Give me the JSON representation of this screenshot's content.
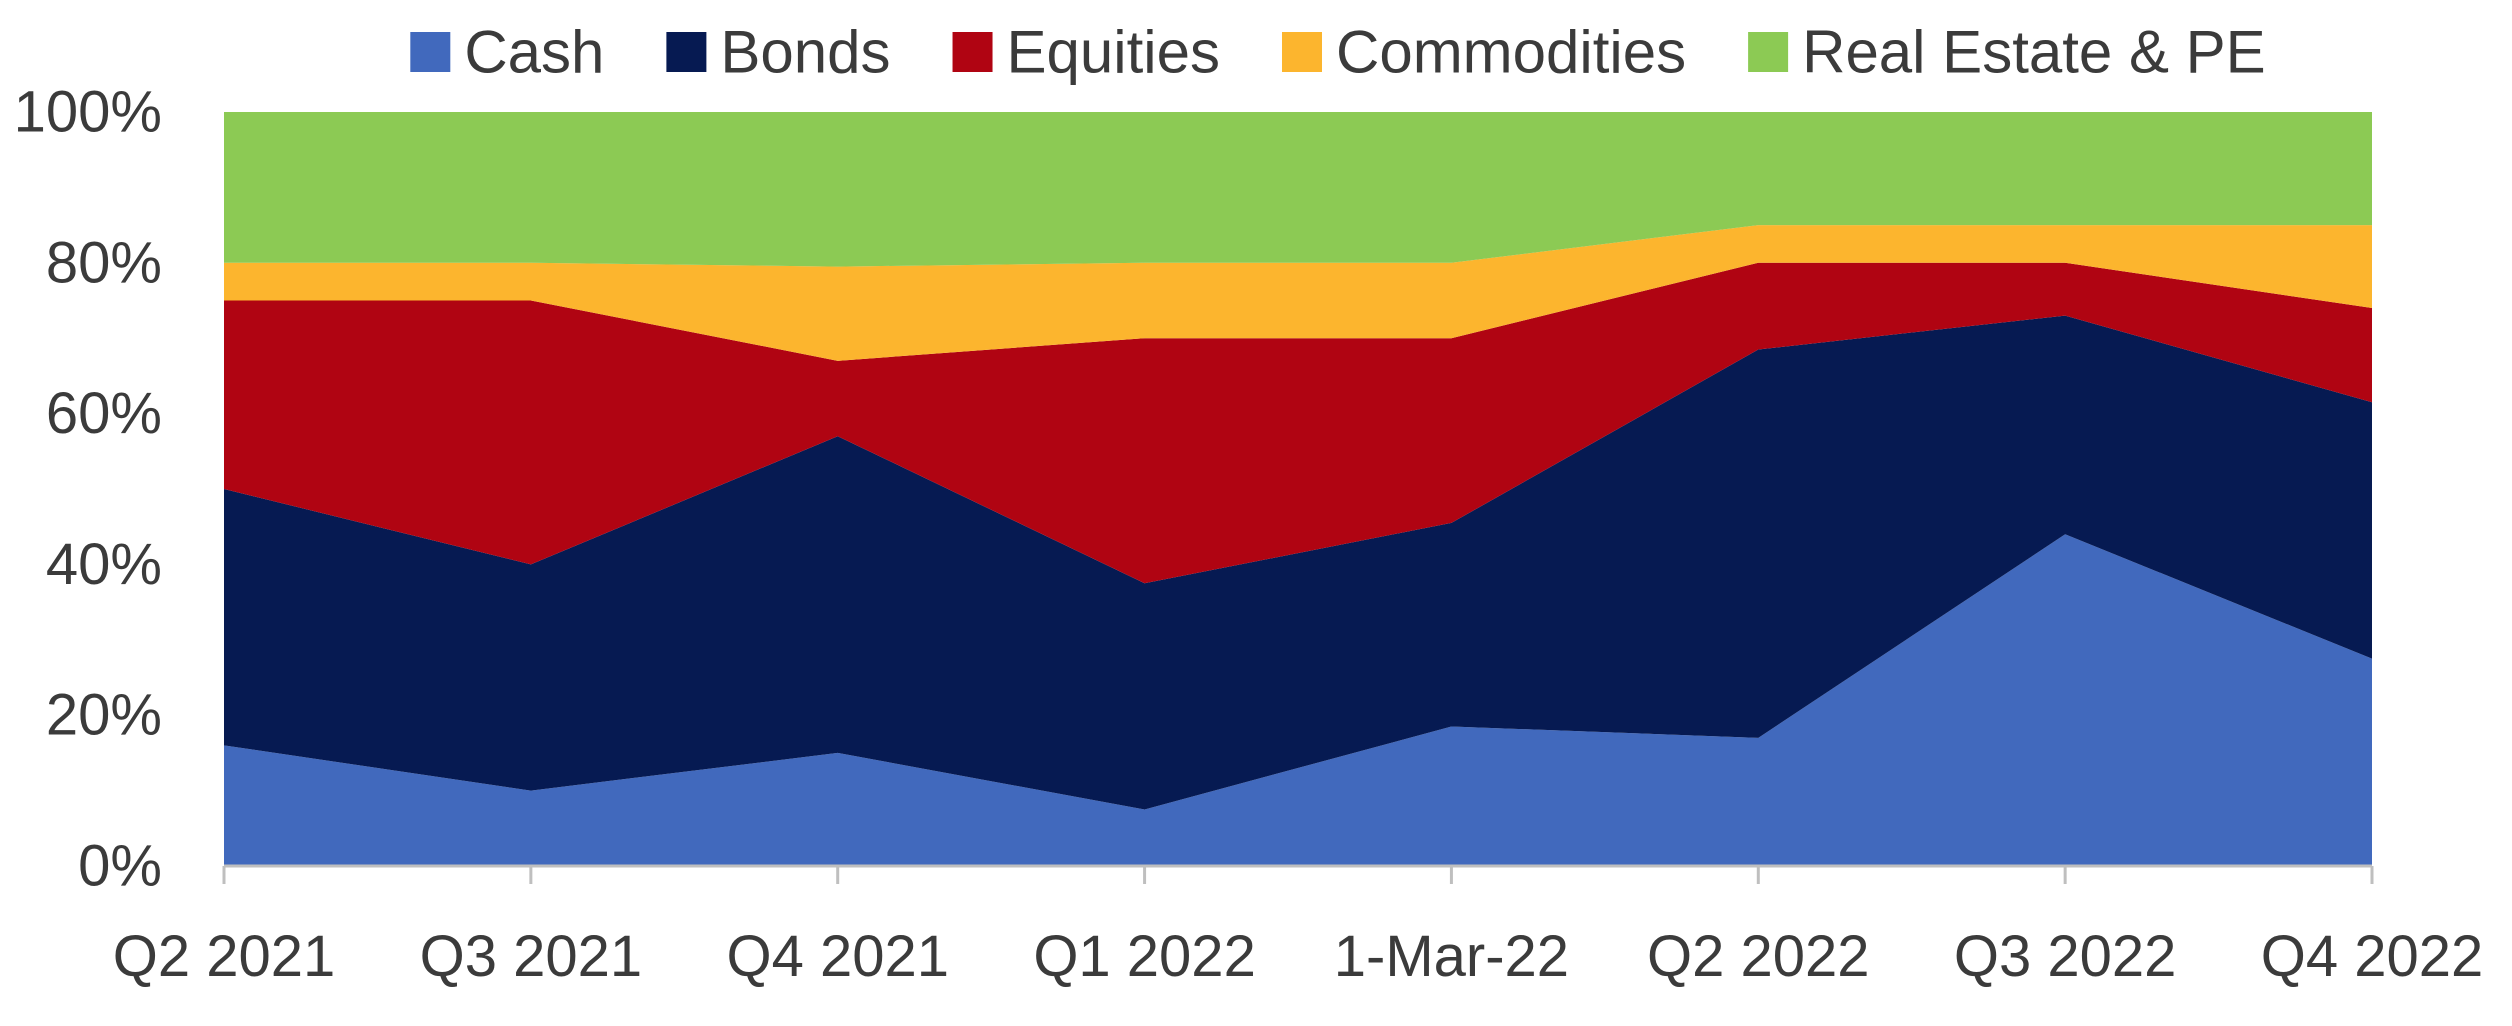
{
  "chart_data": {
    "type": "area",
    "stacked": true,
    "normalized": true,
    "categories": [
      "Q2 2021",
      "Q3 2021",
      "Q4 2021",
      "Q1 2022",
      "1-Mar-22",
      "Q2 2022",
      "Q3 2022",
      "Q4 2022"
    ],
    "series": [
      {
        "name": "Cash",
        "color": "#4169BD",
        "values": [
          16,
          10,
          15,
          7.5,
          18.5,
          17,
          44,
          27.5
        ]
      },
      {
        "name": "Bonds",
        "color": "#061A52",
        "values": [
          34,
          30,
          42,
          30,
          27,
          51.5,
          29,
          34
        ]
      },
      {
        "name": "Equities",
        "color": "#B00412",
        "values": [
          25,
          35,
          10,
          32.5,
          24.5,
          11.5,
          7,
          12.5
        ]
      },
      {
        "name": "Commodities",
        "color": "#FCB52E",
        "values": [
          5,
          5,
          12.5,
          10,
          10,
          5,
          5,
          11
        ]
      },
      {
        "name": "Real Estate & PE",
        "color": "#8CCA54",
        "values": [
          20,
          20,
          20.5,
          20,
          20,
          15,
          15,
          15
        ]
      }
    ],
    "y_ticks": [
      "0%",
      "20%",
      "40%",
      "60%",
      "80%",
      "100%"
    ],
    "ylim": [
      0,
      100
    ],
    "legend_position": "top",
    "grid": false
  }
}
